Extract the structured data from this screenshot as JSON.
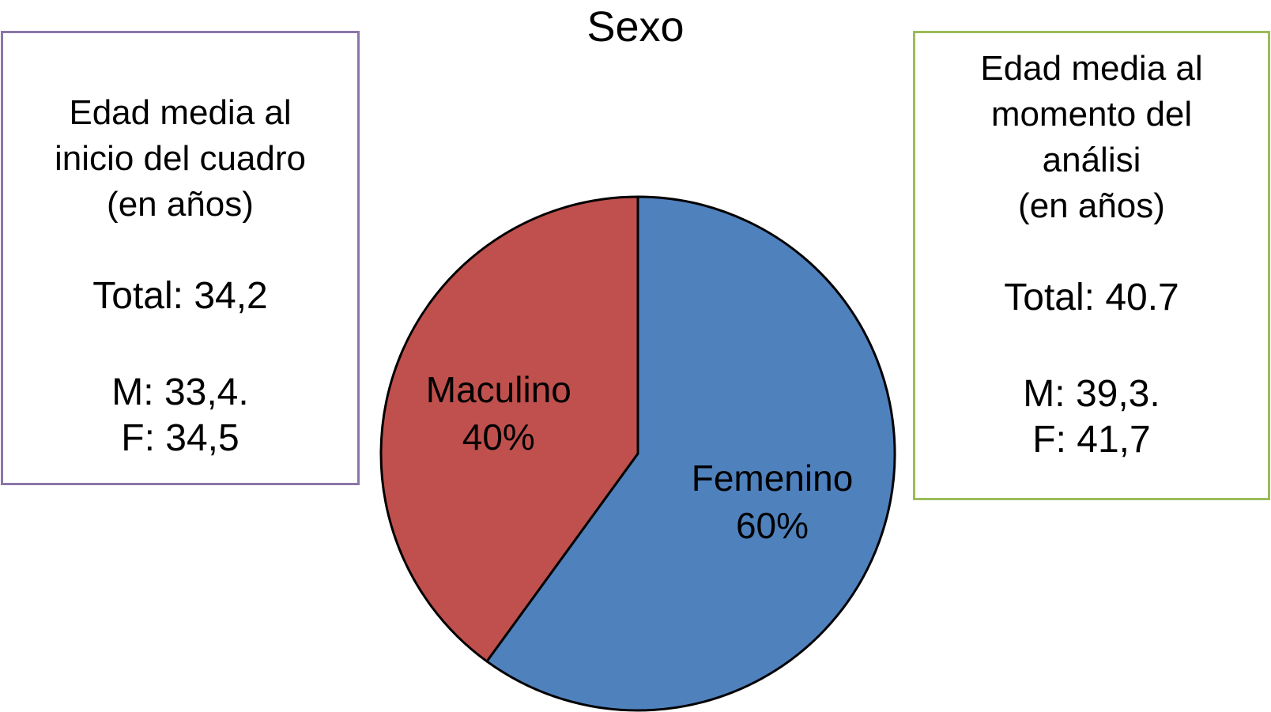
{
  "chart_data": {
    "type": "pie",
    "title": "Sexo",
    "slices": [
      {
        "name": "Femenino",
        "value": 60,
        "label": "60%",
        "color": "#4f81bd"
      },
      {
        "name": "Maculino",
        "value": 40,
        "label": "40%",
        "color": "#c0504d"
      }
    ],
    "start": "12 o'clock",
    "direction": "clockwise",
    "outline_color": "#000000"
  },
  "boxes": {
    "left": {
      "heading": "Edad media al\ninicio del cuadro\n(en años)",
      "total": "Total: 34,2",
      "m": "M: 33,4.",
      "f": "F: 34,5",
      "border_color": "#8b76a8"
    },
    "right": {
      "heading": "Edad media al\nmomento del\nanálisi\n(en años)",
      "total": "Total: 40.7",
      "m": "M: 39,3.",
      "f": "F: 41,7",
      "border_color": "#9bbb59"
    }
  }
}
